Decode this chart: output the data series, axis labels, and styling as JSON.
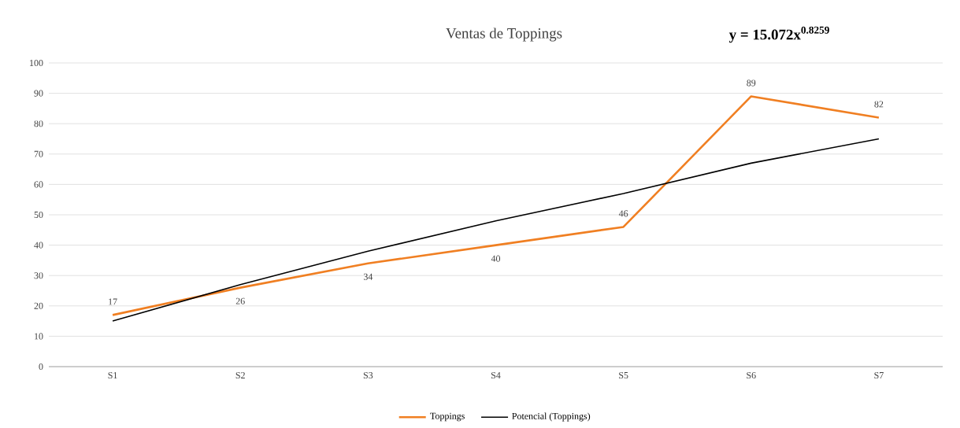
{
  "chart_data": {
    "type": "line",
    "title": "Ventas de Toppings",
    "annotations": [
      "y = 15.072x$^{0.8259}$"
    ],
    "categories": [
      "S1",
      "S2",
      "S3",
      "S4",
      "S5",
      "S6",
      "S7"
    ],
    "series": [
      {
        "name": "Toppings",
        "color": "#f07f22",
        "values": [
          17,
          26,
          34,
          40,
          46,
          89,
          82
        ],
        "value_labels": [
          "17",
          "26",
          "34",
          "40",
          "46",
          "89",
          "82"
        ]
      },
      {
        "name": "Potencial (Toppings)",
        "color": "#000000",
        "values": [
          15,
          27,
          38,
          48,
          57,
          67,
          75
        ]
      }
    ],
    "ylim": [
      0,
      100
    ],
    "yticks": [
      0,
      10,
      20,
      30,
      40,
      50,
      60,
      70,
      80,
      90,
      100
    ],
    "grid": "y",
    "legend": "bottom"
  }
}
